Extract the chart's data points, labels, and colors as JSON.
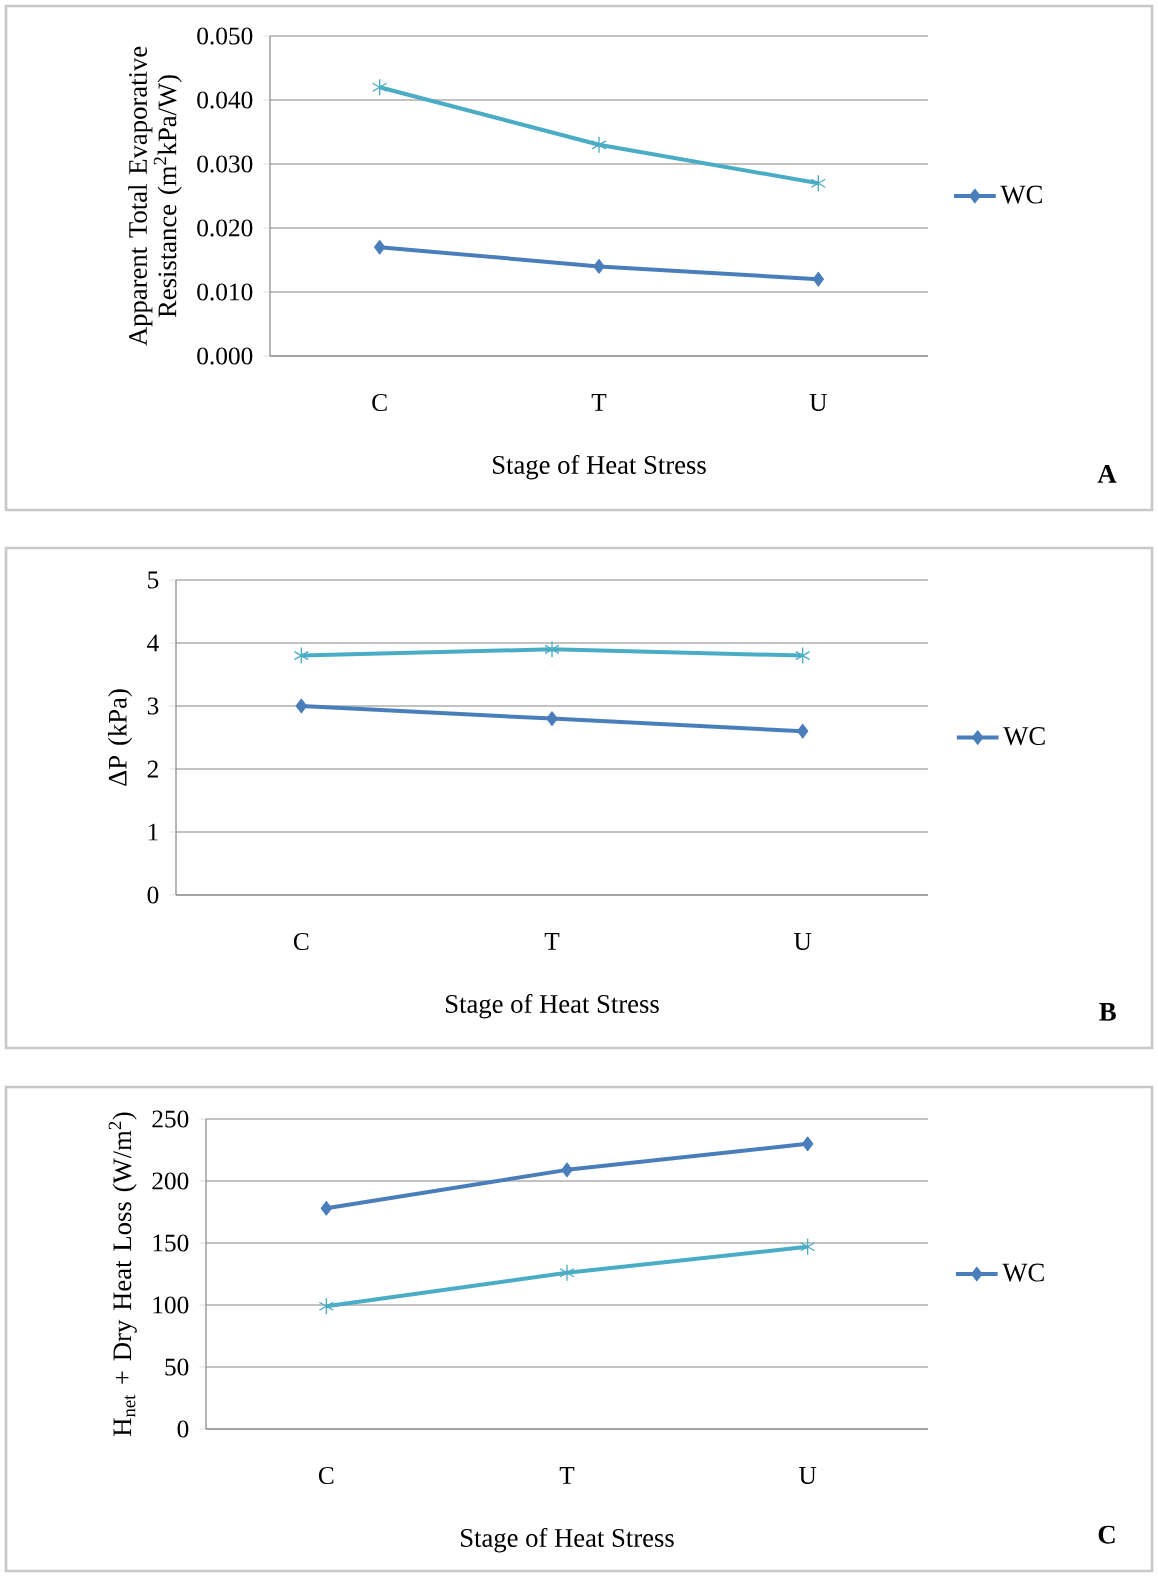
{
  "chart_data": [
    {
      "type": "line",
      "categories": [
        "C",
        "T",
        "U"
      ],
      "xlabel": "Stage of Heat Stress",
      "ylabel": "Apparent Total Evaporative Resistance (m$^{2}$kPa/W)",
      "ylim": [
        0,
        0.05
      ],
      "yticks": [
        {
          "value": 0,
          "label": "0.000"
        },
        {
          "value": 0.01,
          "label": "0.010"
        },
        {
          "value": 0.02,
          "label": "0.020"
        },
        {
          "value": 0.03,
          "label": "0.030"
        },
        {
          "value": 0.04,
          "label": "0.040"
        },
        {
          "value": 0.05,
          "label": "0.050"
        }
      ],
      "grid": "y",
      "legend": "right",
      "annotations": [
        "A"
      ],
      "series": [
        {
          "name": "WC",
          "color": "#4a7ebb",
          "marker": "diamond",
          "values": [
            0.017,
            0.014,
            0.012
          ]
        },
        {
          "color": "#4bacc6",
          "marker": "cross",
          "values": [
            0.042,
            0.033,
            0.027
          ]
        }
      ]
    },
    {
      "type": "line",
      "categories": [
        "C",
        "T",
        "U"
      ],
      "xlabel": "Stage of Heat Stress",
      "ylabel": "ΔP (kPa)",
      "ylim": [
        0,
        5
      ],
      "yticks": [
        0,
        1,
        2,
        3,
        4,
        5
      ],
      "grid": "y",
      "legend": "right",
      "annotations": [
        "B"
      ],
      "series": [
        {
          "name": "WC",
          "color": "#4a7ebb",
          "marker": "diamond",
          "values": [
            3.0,
            2.8,
            2.6
          ]
        },
        {
          "color": "#4bacc6",
          "marker": "cross",
          "values": [
            3.8,
            3.9,
            3.8
          ]
        }
      ]
    },
    {
      "type": "line",
      "categories": [
        "C",
        "T",
        "U"
      ],
      "xlabel": "Stage of Heat Stress",
      "ylabel": "H$_{net}$ + Dry Heat Loss (W/m$^{2}$)",
      "ylim": [
        0,
        250
      ],
      "yticks": [
        0,
        50,
        100,
        150,
        200,
        250
      ],
      "grid": "y",
      "legend": "right",
      "annotations": [
        "C"
      ],
      "series": [
        {
          "name": "WC",
          "color": "#4a7ebb",
          "marker": "diamond",
          "values": [
            178,
            209,
            230
          ]
        },
        {
          "color": "#4bacc6",
          "marker": "cross",
          "values": [
            99,
            126,
            147
          ]
        }
      ]
    }
  ]
}
